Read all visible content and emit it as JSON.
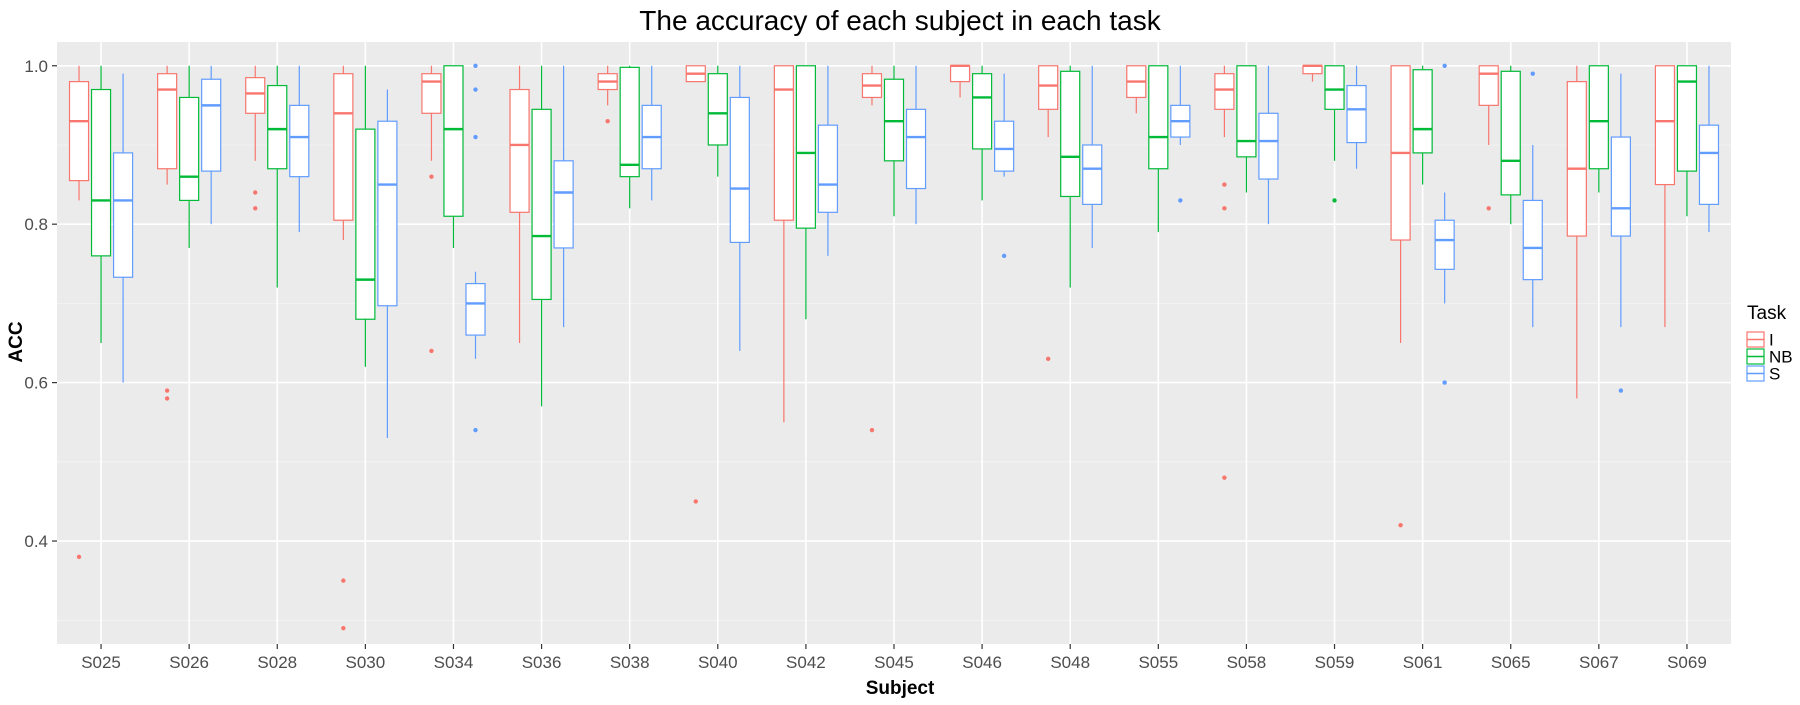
{
  "chart_data": {
    "type": "boxplot",
    "title": "The accuracy of each subject in each task",
    "xlabel": "Subject",
    "ylabel": "ACC",
    "ylim": [
      0.27,
      1.03
    ],
    "yticks": [
      0.4,
      0.6,
      0.8,
      1.0
    ],
    "ytick_labels": [
      "0.4",
      "0.6",
      "0.8",
      "1.0"
    ],
    "grid": true,
    "legend": {
      "title": "Task",
      "position": "right"
    },
    "categories": [
      "S025",
      "S026",
      "S028",
      "S030",
      "S034",
      "S036",
      "S038",
      "S040",
      "S042",
      "S045",
      "S046",
      "S048",
      "S055",
      "S058",
      "S059",
      "S061",
      "S065",
      "S067",
      "S069"
    ],
    "series": [
      {
        "name": "I",
        "color": "#F8766D",
        "boxes": [
          {
            "lower": 0.83,
            "q1": 0.855,
            "median": 0.93,
            "q3": 0.98,
            "upper": 1.0,
            "outliers": [
              0.38
            ]
          },
          {
            "lower": 0.85,
            "q1": 0.87,
            "median": 0.97,
            "q3": 0.99,
            "upper": 1.0,
            "outliers": [
              0.59,
              0.58
            ]
          },
          {
            "lower": 0.88,
            "q1": 0.94,
            "median": 0.965,
            "q3": 0.985,
            "upper": 1.0,
            "outliers": [
              0.84,
              0.82
            ]
          },
          {
            "lower": 0.78,
            "q1": 0.805,
            "median": 0.94,
            "q3": 0.99,
            "upper": 1.0,
            "outliers": [
              0.35,
              0.29
            ]
          },
          {
            "lower": 0.88,
            "q1": 0.94,
            "median": 0.98,
            "q3": 0.99,
            "upper": 1.0,
            "outliers": [
              0.86,
              0.64
            ]
          },
          {
            "lower": 0.65,
            "q1": 0.815,
            "median": 0.9,
            "q3": 0.97,
            "upper": 1.0,
            "outliers": []
          },
          {
            "lower": 0.95,
            "q1": 0.97,
            "median": 0.98,
            "q3": 0.99,
            "upper": 1.0,
            "outliers": [
              0.93
            ]
          },
          {
            "lower": 0.98,
            "q1": 0.98,
            "median": 0.99,
            "q3": 1.0,
            "upper": 1.0,
            "outliers": [
              0.45
            ]
          },
          {
            "lower": 0.55,
            "q1": 0.805,
            "median": 0.97,
            "q3": 1.0,
            "upper": 1.0,
            "outliers": []
          },
          {
            "lower": 0.95,
            "q1": 0.96,
            "median": 0.975,
            "q3": 0.99,
            "upper": 1.0,
            "outliers": [
              0.54
            ]
          },
          {
            "lower": 0.96,
            "q1": 0.98,
            "median": 1.0,
            "q3": 1.0,
            "upper": 1.0,
            "outliers": []
          },
          {
            "lower": 0.91,
            "q1": 0.945,
            "median": 0.975,
            "q3": 1.0,
            "upper": 1.0,
            "outliers": [
              0.63
            ]
          },
          {
            "lower": 0.94,
            "q1": 0.96,
            "median": 0.98,
            "q3": 1.0,
            "upper": 1.0,
            "outliers": []
          },
          {
            "lower": 0.91,
            "q1": 0.945,
            "median": 0.97,
            "q3": 0.99,
            "upper": 1.0,
            "outliers": [
              0.85,
              0.82,
              0.48
            ]
          },
          {
            "lower": 0.98,
            "q1": 0.99,
            "median": 1.0,
            "q3": 1.0,
            "upper": 1.0,
            "outliers": []
          },
          {
            "lower": 0.65,
            "q1": 0.78,
            "median": 0.89,
            "q3": 1.0,
            "upper": 1.0,
            "outliers": [
              0.42
            ]
          },
          {
            "lower": 0.9,
            "q1": 0.95,
            "median": 0.99,
            "q3": 1.0,
            "upper": 1.0,
            "outliers": [
              0.82
            ]
          },
          {
            "lower": 0.58,
            "q1": 0.785,
            "median": 0.87,
            "q3": 0.98,
            "upper": 1.0,
            "outliers": []
          },
          {
            "lower": 0.67,
            "q1": 0.85,
            "median": 0.93,
            "q3": 1.0,
            "upper": 1.0,
            "outliers": []
          }
        ]
      },
      {
        "name": "NB",
        "color": "#00BA38",
        "boxes": [
          {
            "lower": 0.65,
            "q1": 0.76,
            "median": 0.83,
            "q3": 0.97,
            "upper": 1.0,
            "outliers": []
          },
          {
            "lower": 0.77,
            "q1": 0.83,
            "median": 0.86,
            "q3": 0.96,
            "upper": 1.0,
            "outliers": []
          },
          {
            "lower": 0.72,
            "q1": 0.87,
            "median": 0.92,
            "q3": 0.975,
            "upper": 1.0,
            "outliers": []
          },
          {
            "lower": 0.62,
            "q1": 0.68,
            "median": 0.73,
            "q3": 0.92,
            "upper": 1.0,
            "outliers": []
          },
          {
            "lower": 0.77,
            "q1": 0.81,
            "median": 0.92,
            "q3": 1.0,
            "upper": 1.0,
            "outliers": []
          },
          {
            "lower": 0.57,
            "q1": 0.705,
            "median": 0.785,
            "q3": 0.945,
            "upper": 1.0,
            "outliers": []
          },
          {
            "lower": 0.82,
            "q1": 0.86,
            "median": 0.875,
            "q3": 0.998,
            "upper": 1.0,
            "outliers": []
          },
          {
            "lower": 0.86,
            "q1": 0.9,
            "median": 0.94,
            "q3": 0.99,
            "upper": 1.0,
            "outliers": []
          },
          {
            "lower": 0.68,
            "q1": 0.795,
            "median": 0.89,
            "q3": 1.0,
            "upper": 1.0,
            "outliers": []
          },
          {
            "lower": 0.81,
            "q1": 0.88,
            "median": 0.93,
            "q3": 0.983,
            "upper": 1.0,
            "outliers": []
          },
          {
            "lower": 0.83,
            "q1": 0.895,
            "median": 0.96,
            "q3": 0.99,
            "upper": 1.0,
            "outliers": []
          },
          {
            "lower": 0.72,
            "q1": 0.835,
            "median": 0.885,
            "q3": 0.993,
            "upper": 1.0,
            "outliers": []
          },
          {
            "lower": 0.79,
            "q1": 0.87,
            "median": 0.91,
            "q3": 1.0,
            "upper": 1.0,
            "outliers": []
          },
          {
            "lower": 0.84,
            "q1": 0.885,
            "median": 0.905,
            "q3": 1.0,
            "upper": 1.0,
            "outliers": []
          },
          {
            "lower": 0.88,
            "q1": 0.945,
            "median": 0.97,
            "q3": 1.0,
            "upper": 1.0,
            "outliers": [
              0.83
            ]
          },
          {
            "lower": 0.85,
            "q1": 0.89,
            "median": 0.92,
            "q3": 0.995,
            "upper": 1.0,
            "outliers": []
          },
          {
            "lower": 0.8,
            "q1": 0.837,
            "median": 0.88,
            "q3": 0.993,
            "upper": 1.0,
            "outliers": []
          },
          {
            "lower": 0.84,
            "q1": 0.87,
            "median": 0.93,
            "q3": 1.0,
            "upper": 1.0,
            "outliers": []
          },
          {
            "lower": 0.81,
            "q1": 0.867,
            "median": 0.98,
            "q3": 1.0,
            "upper": 1.0,
            "outliers": []
          }
        ]
      },
      {
        "name": "S",
        "color": "#619CFF",
        "boxes": [
          {
            "lower": 0.6,
            "q1": 0.733,
            "median": 0.83,
            "q3": 0.89,
            "upper": 0.99,
            "outliers": []
          },
          {
            "lower": 0.8,
            "q1": 0.867,
            "median": 0.95,
            "q3": 0.983,
            "upper": 1.0,
            "outliers": []
          },
          {
            "lower": 0.79,
            "q1": 0.86,
            "median": 0.91,
            "q3": 0.95,
            "upper": 1.0,
            "outliers": []
          },
          {
            "lower": 0.53,
            "q1": 0.697,
            "median": 0.85,
            "q3": 0.93,
            "upper": 0.97,
            "outliers": []
          },
          {
            "lower": 0.63,
            "q1": 0.66,
            "median": 0.7,
            "q3": 0.725,
            "upper": 0.74,
            "outliers": [
              1.0,
              0.97,
              0.91,
              0.54
            ]
          },
          {
            "lower": 0.67,
            "q1": 0.77,
            "median": 0.84,
            "q3": 0.88,
            "upper": 1.0,
            "outliers": []
          },
          {
            "lower": 0.83,
            "q1": 0.87,
            "median": 0.91,
            "q3": 0.95,
            "upper": 1.0,
            "outliers": []
          },
          {
            "lower": 0.64,
            "q1": 0.777,
            "median": 0.845,
            "q3": 0.96,
            "upper": 1.0,
            "outliers": []
          },
          {
            "lower": 0.76,
            "q1": 0.815,
            "median": 0.85,
            "q3": 0.925,
            "upper": 1.0,
            "outliers": []
          },
          {
            "lower": 0.8,
            "q1": 0.845,
            "median": 0.91,
            "q3": 0.945,
            "upper": 1.0,
            "outliers": []
          },
          {
            "lower": 0.86,
            "q1": 0.867,
            "median": 0.895,
            "q3": 0.93,
            "upper": 0.99,
            "outliers": [
              0.76
            ]
          },
          {
            "lower": 0.77,
            "q1": 0.825,
            "median": 0.87,
            "q3": 0.9,
            "upper": 1.0,
            "outliers": []
          },
          {
            "lower": 0.9,
            "q1": 0.91,
            "median": 0.93,
            "q3": 0.95,
            "upper": 1.0,
            "outliers": [
              0.83
            ]
          },
          {
            "lower": 0.8,
            "q1": 0.857,
            "median": 0.905,
            "q3": 0.94,
            "upper": 1.0,
            "outliers": []
          },
          {
            "lower": 0.87,
            "q1": 0.903,
            "median": 0.945,
            "q3": 0.975,
            "upper": 1.0,
            "outliers": []
          },
          {
            "lower": 0.7,
            "q1": 0.743,
            "median": 0.78,
            "q3": 0.805,
            "upper": 0.84,
            "outliers": [
              1.0,
              0.6
            ]
          },
          {
            "lower": 0.67,
            "q1": 0.73,
            "median": 0.77,
            "q3": 0.83,
            "upper": 0.9,
            "outliers": [
              0.99
            ]
          },
          {
            "lower": 0.67,
            "q1": 0.785,
            "median": 0.82,
            "q3": 0.91,
            "upper": 0.99,
            "outliers": [
              0.59
            ]
          },
          {
            "lower": 0.79,
            "q1": 0.825,
            "median": 0.89,
            "q3": 0.925,
            "upper": 1.0,
            "outliers": []
          }
        ]
      }
    ]
  }
}
